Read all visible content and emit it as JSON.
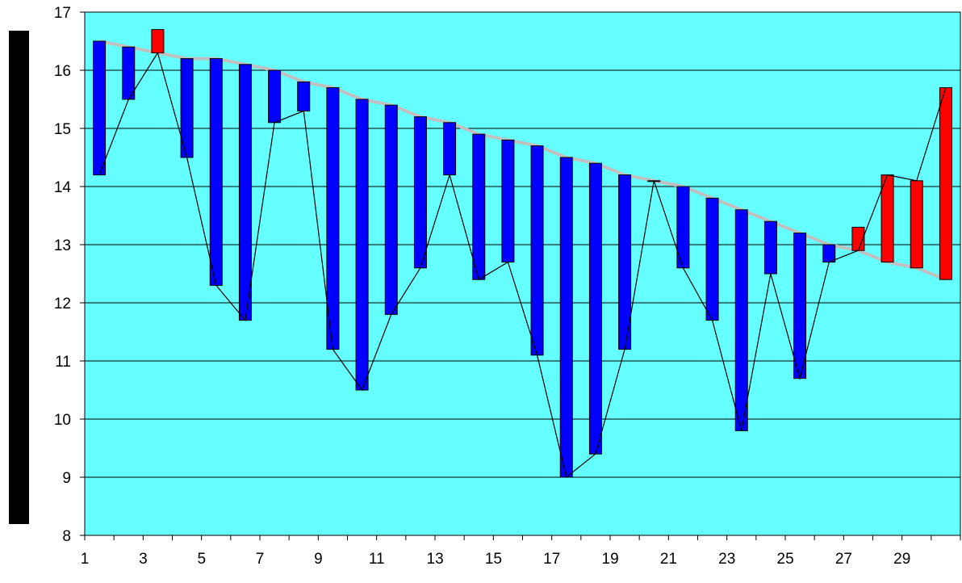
{
  "chart_data": {
    "type": "bar",
    "subtype": "floating-bar-with-lines",
    "title": "",
    "xlabel": "",
    "ylabel": "",
    "ylim": [
      8,
      17
    ],
    "yticks": [
      8,
      9,
      10,
      11,
      12,
      13,
      14,
      15,
      16,
      17
    ],
    "x": [
      1,
      2,
      3,
      4,
      5,
      6,
      7,
      8,
      9,
      10,
      11,
      12,
      13,
      14,
      15,
      16,
      17,
      18,
      19,
      20,
      21,
      22,
      23,
      24,
      25,
      26,
      27,
      28,
      29,
      30
    ],
    "x_tick_labels_shown": [
      1,
      3,
      5,
      7,
      9,
      11,
      13,
      15,
      17,
      19,
      21,
      23,
      25,
      27,
      29
    ],
    "grid": "horizontal",
    "legend": "none",
    "plot_background": "#66ffff",
    "series": [
      {
        "role": "bar-top",
        "values": [
          16.5,
          16.4,
          16.7,
          16.2,
          16.2,
          16.1,
          16.0,
          15.8,
          15.7,
          15.5,
          15.4,
          15.2,
          15.1,
          14.9,
          14.8,
          14.7,
          14.5,
          14.4,
          14.2,
          14.1,
          14.0,
          13.8,
          13.6,
          13.4,
          13.2,
          13.0,
          13.3,
          14.2,
          14.1,
          15.7
        ]
      },
      {
        "role": "bar-bottom",
        "values": [
          14.2,
          15.5,
          16.3,
          14.5,
          12.3,
          11.7,
          15.1,
          15.3,
          11.2,
          10.5,
          11.8,
          12.6,
          14.2,
          12.4,
          12.7,
          11.1,
          9.0,
          9.4,
          11.2,
          14.1,
          12.6,
          11.7,
          9.8,
          12.5,
          10.7,
          12.7,
          12.9,
          12.7,
          12.6,
          12.4
        ]
      },
      {
        "role": "gray-line",
        "color": "#c0c0c0",
        "values": [
          16.5,
          16.4,
          16.3,
          16.2,
          16.2,
          16.1,
          16.0,
          15.8,
          15.7,
          15.5,
          15.4,
          15.2,
          15.1,
          14.9,
          14.8,
          14.7,
          14.5,
          14.4,
          14.2,
          14.1,
          14.0,
          13.8,
          13.6,
          13.4,
          13.2,
          13.0,
          12.9,
          12.7,
          12.6,
          12.4
        ]
      },
      {
        "role": "black-line",
        "color": "#000000",
        "values": [
          14.2,
          15.5,
          16.3,
          14.5,
          12.3,
          11.7,
          15.1,
          15.3,
          11.2,
          10.5,
          11.8,
          12.6,
          14.2,
          12.4,
          12.7,
          11.1,
          9.0,
          9.4,
          11.2,
          14.1,
          12.6,
          11.7,
          9.8,
          12.5,
          10.7,
          12.7,
          12.9,
          14.2,
          14.1,
          15.7
        ]
      }
    ],
    "colors": {
      "bar_down": "#0000ff",
      "bar_up": "#ff0000",
      "gridline": "#000000",
      "left_band": "#000000"
    }
  }
}
